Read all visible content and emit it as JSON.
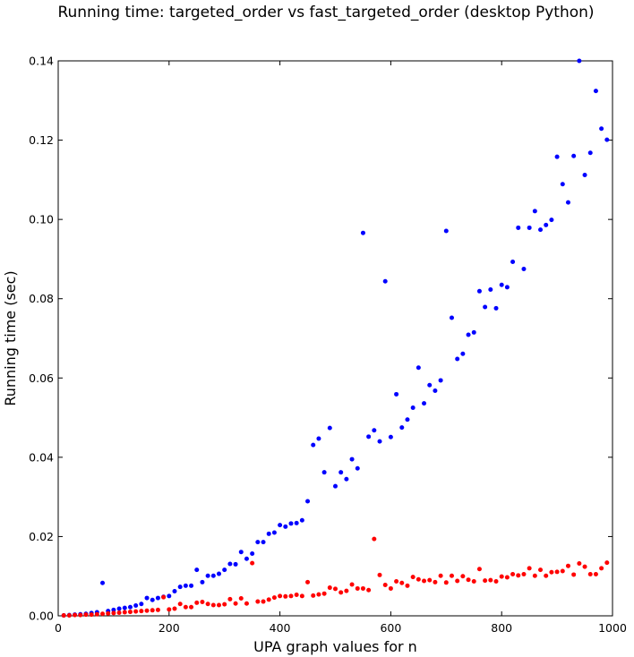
{
  "chart_data": {
    "type": "scatter",
    "title": "Running time: targeted_order vs fast_targeted_order (desktop Python)",
    "xlabel": "UPA graph values for n",
    "ylabel": "Running time (sec)",
    "xlim": [
      0,
      1000
    ],
    "ylim": [
      0,
      0.14
    ],
    "xticks": [
      "0",
      "200",
      "400",
      "600",
      "800",
      "1000"
    ],
    "yticks": [
      "0.00",
      "0.02",
      "0.04",
      "0.06",
      "0.08",
      "0.10",
      "0.12",
      "0.14"
    ],
    "grid": false,
    "legend": "none",
    "series": [
      {
        "color": "#0000ff",
        "x": [
          10,
          20,
          30,
          40,
          50,
          60,
          70,
          80,
          90,
          100,
          110,
          120,
          130,
          140,
          150,
          160,
          170,
          180,
          190,
          200,
          210,
          220,
          230,
          240,
          250,
          260,
          270,
          280,
          290,
          300,
          310,
          320,
          330,
          340,
          350,
          360,
          370,
          380,
          390,
          400,
          410,
          420,
          430,
          440,
          450,
          460,
          470,
          480,
          490,
          500,
          510,
          520,
          530,
          540,
          550,
          560,
          570,
          580,
          590,
          600,
          610,
          620,
          630,
          640,
          650,
          660,
          670,
          680,
          690,
          700,
          710,
          720,
          730,
          740,
          750,
          760,
          770,
          780,
          790,
          800,
          810,
          820,
          830,
          840,
          850,
          860,
          870,
          880,
          890,
          900,
          910,
          920,
          930,
          940,
          950,
          960,
          970,
          980,
          990
        ],
        "y": [
          0.0001,
          0.0002,
          0.0003,
          0.0004,
          0.0005,
          0.0007,
          0.0009,
          0.0083,
          0.0012,
          0.0015,
          0.0018,
          0.002,
          0.0022,
          0.0026,
          0.003,
          0.0045,
          0.004,
          0.0045,
          0.0048,
          0.005,
          0.0062,
          0.0073,
          0.0076,
          0.0076,
          0.0116,
          0.0085,
          0.0101,
          0.0101,
          0.0106,
          0.0116,
          0.0131,
          0.013,
          0.0161,
          0.0144,
          0.0157,
          0.0186,
          0.0186,
          0.0207,
          0.021,
          0.0229,
          0.0225,
          0.0233,
          0.0234,
          0.0241,
          0.0289,
          0.0431,
          0.0447,
          0.0362,
          0.0474,
          0.0327,
          0.0362,
          0.0345,
          0.0395,
          0.0372,
          0.0966,
          0.0452,
          0.0468,
          0.044,
          0.0844,
          0.0451,
          0.0559,
          0.0475,
          0.0495,
          0.0525,
          0.0626,
          0.0536,
          0.0582,
          0.0568,
          0.0594,
          0.0971,
          0.0752,
          0.0648,
          0.0661,
          0.0709,
          0.0715,
          0.0819,
          0.0779,
          0.0823,
          0.0776,
          0.0835,
          0.0829,
          0.0893,
          0.0979,
          0.0875,
          0.0979,
          0.1021,
          0.0974,
          0.0986,
          0.0999,
          0.1158,
          0.1089,
          0.1043,
          0.116,
          0.14,
          0.1112,
          0.1168,
          0.1324,
          0.1229,
          0.1201
        ]
      },
      {
        "color": "#ff0000",
        "x": [
          10,
          20,
          30,
          40,
          50,
          60,
          70,
          80,
          90,
          100,
          110,
          120,
          130,
          140,
          150,
          160,
          170,
          180,
          190,
          200,
          210,
          220,
          230,
          240,
          250,
          260,
          270,
          280,
          290,
          300,
          310,
          320,
          330,
          340,
          350,
          360,
          370,
          380,
          390,
          400,
          410,
          420,
          430,
          440,
          450,
          460,
          470,
          480,
          490,
          500,
          510,
          520,
          530,
          540,
          550,
          560,
          570,
          580,
          590,
          600,
          610,
          620,
          630,
          640,
          650,
          660,
          670,
          680,
          690,
          700,
          710,
          720,
          730,
          740,
          750,
          760,
          770,
          780,
          790,
          800,
          810,
          820,
          830,
          840,
          850,
          860,
          870,
          880,
          890,
          900,
          910,
          920,
          930,
          940,
          950,
          960,
          970,
          980,
          990
        ],
        "y": [
          0.0001,
          0.0001,
          0.0002,
          0.0002,
          0.0003,
          0.0003,
          0.0004,
          0.0005,
          0.0006,
          0.0007,
          0.0008,
          0.0009,
          0.001,
          0.0011,
          0.0012,
          0.0013,
          0.0014,
          0.0015,
          0.0047,
          0.0016,
          0.0018,
          0.003,
          0.0022,
          0.0022,
          0.0033,
          0.0035,
          0.003,
          0.0027,
          0.0027,
          0.0029,
          0.0042,
          0.0031,
          0.0044,
          0.0031,
          0.0133,
          0.0036,
          0.0036,
          0.0041,
          0.0046,
          0.005,
          0.0049,
          0.005,
          0.0053,
          0.005,
          0.0085,
          0.0051,
          0.0054,
          0.0056,
          0.0071,
          0.0068,
          0.0059,
          0.0063,
          0.0079,
          0.0069,
          0.0069,
          0.0065,
          0.0194,
          0.0103,
          0.0078,
          0.0069,
          0.0087,
          0.0083,
          0.0076,
          0.0098,
          0.0092,
          0.0088,
          0.009,
          0.0085,
          0.0101,
          0.0084,
          0.0101,
          0.0088,
          0.01,
          0.0091,
          0.0087,
          0.0118,
          0.0089,
          0.009,
          0.0087,
          0.0099,
          0.0097,
          0.0105,
          0.0102,
          0.0105,
          0.012,
          0.0101,
          0.0116,
          0.0101,
          0.011,
          0.0111,
          0.0113,
          0.0126,
          0.0104,
          0.0132,
          0.0124,
          0.0105,
          0.0105,
          0.012,
          0.0134
        ]
      }
    ]
  }
}
